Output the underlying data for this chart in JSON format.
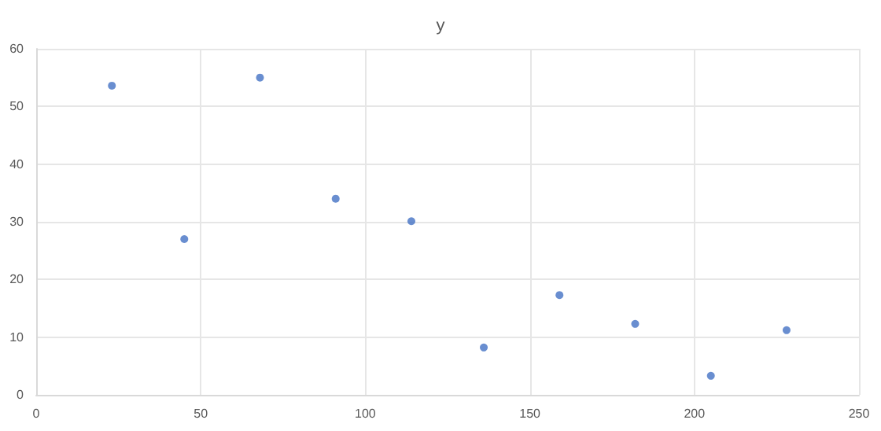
{
  "chart_data": {
    "type": "scatter",
    "title": "y",
    "x": [
      23,
      45,
      68,
      91,
      114,
      136,
      159,
      182,
      205,
      228
    ],
    "series": [
      {
        "color": "#4472c4",
        "values": [
          53.6,
          27,
          55,
          34,
          30.1,
          8.2,
          17.3,
          12.3,
          3.3,
          11.2
        ]
      }
    ],
    "xlim": [
      0,
      250
    ],
    "xticks": [
      0,
      50,
      100,
      150,
      200,
      250
    ],
    "ylim": [
      0,
      60
    ],
    "yticks": [
      0,
      10,
      20,
      30,
      40,
      50,
      60
    ],
    "grid": true,
    "marker": "circle"
  }
}
